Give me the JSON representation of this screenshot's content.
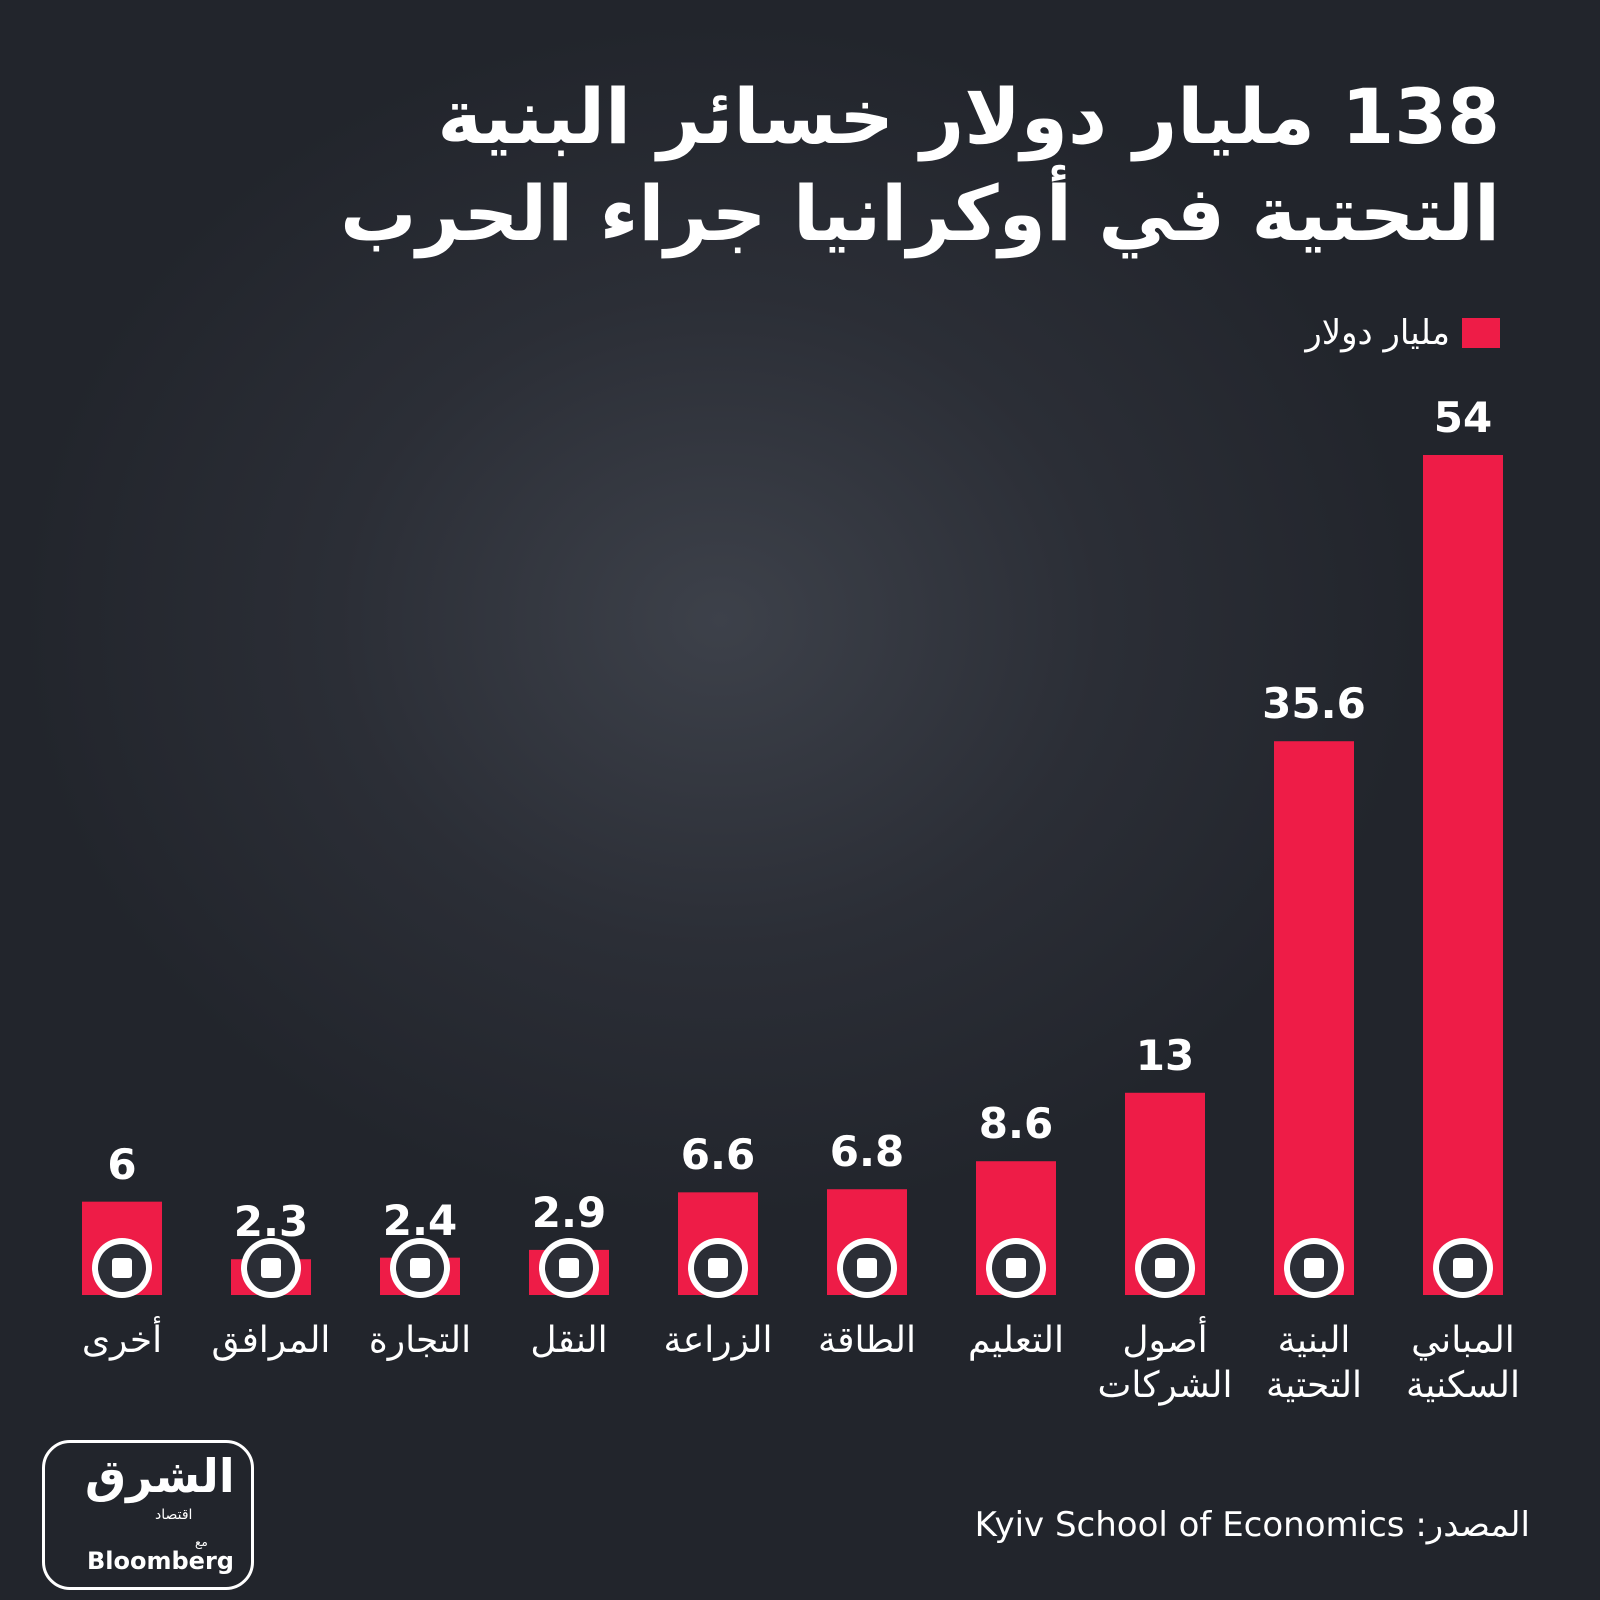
{
  "chart_data": {
    "type": "bar",
    "title": "138 مليار دولار خسائر البنية التحتية في أوكرانيا جراء الحرب",
    "categories": [
      "المباني السكنية",
      "البنية التحتية",
      "أصول الشركات",
      "التعليم",
      "الطاقة",
      "الزراعة",
      "النقل",
      "التجارة",
      "المرافق",
      "أخرى"
    ],
    "series": [
      {
        "name": "مليار دولار",
        "color": "#ee1c47",
        "values": [
          54,
          35.6,
          13,
          8.6,
          6.8,
          6.6,
          2.9,
          2.4,
          2.3,
          6
        ]
      }
    ],
    "legend": "top-right",
    "source": "المصدر: Kyiv School of Economics",
    "logo": {
      "main": "الشرق",
      "sub": "اقتصاد",
      "with": "مع",
      "partner": "Bloomberg"
    }
  }
}
